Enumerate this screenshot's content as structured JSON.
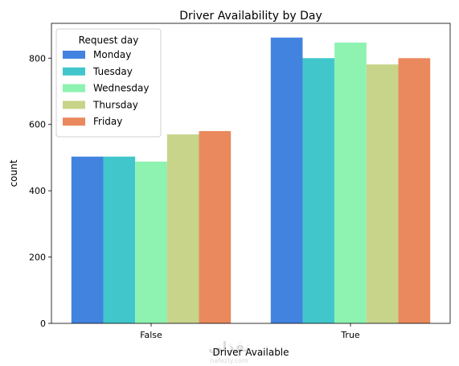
{
  "chart_data": {
    "type": "bar",
    "title": "Driver Availability by Day",
    "xlabel": "Driver Available",
    "ylabel": "count",
    "categories": [
      "False",
      "True"
    ],
    "ylim": [
      0,
      905
    ],
    "yticks": [
      0,
      200,
      400,
      600,
      800
    ],
    "grid": false,
    "legend": {
      "title": "Request day",
      "position": "top-left"
    },
    "series": [
      {
        "name": "Monday",
        "color": "#4383e0",
        "values": [
          503,
          862
        ]
      },
      {
        "name": "Tuesday",
        "color": "#41c7cb",
        "values": [
          503,
          800
        ]
      },
      {
        "name": "Wednesday",
        "color": "#8ef2b1",
        "values": [
          488,
          847
        ]
      },
      {
        "name": "Thursday",
        "color": "#c9d48b",
        "values": [
          570,
          781
        ]
      },
      {
        "name": "Friday",
        "color": "#e9895d",
        "values": [
          580,
          800
        ]
      }
    ]
  },
  "watermark": {
    "text": "نفذلي",
    "subtext": "nafezly.com"
  }
}
